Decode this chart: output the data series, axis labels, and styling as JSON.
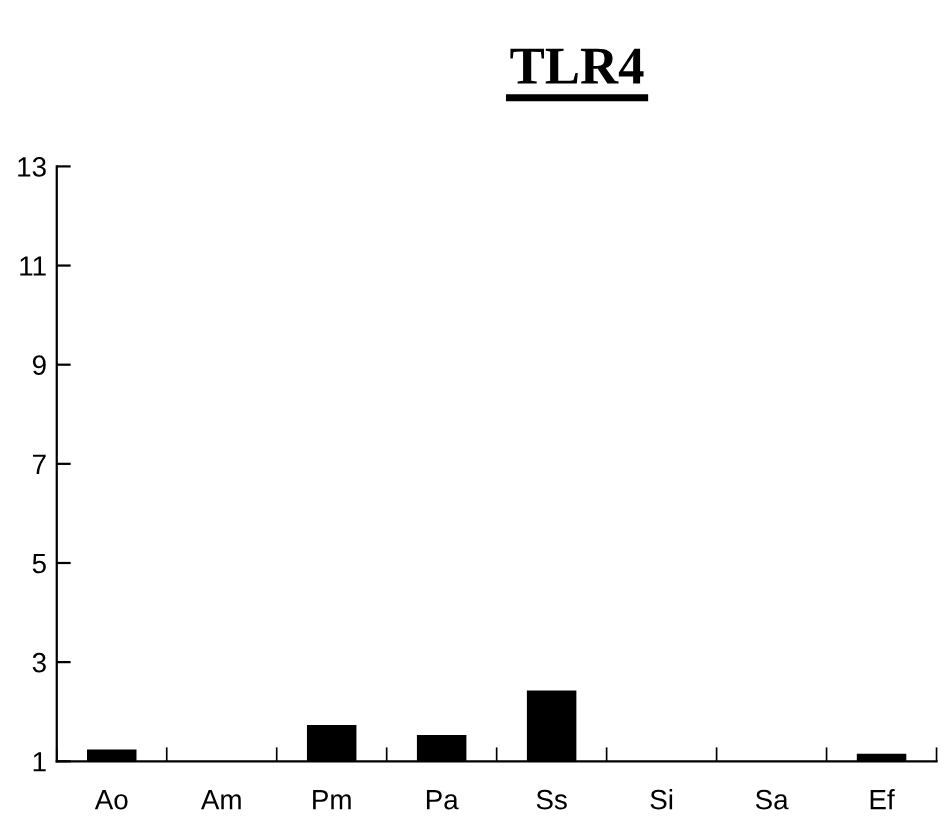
{
  "chart_data": {
    "type": "bar",
    "title": "TLR4",
    "categories": [
      "Ao",
      "Am",
      "Pm",
      "Pa",
      "Ss",
      "Si",
      "Sa",
      "Ef"
    ],
    "values": [
      1.24,
      1,
      1.73,
      1.53,
      2.43,
      1,
      1,
      1.15
    ],
    "color": "#000000",
    "ylim": [
      1,
      13
    ],
    "yticks": [
      1,
      3,
      5,
      7,
      9,
      11,
      13
    ],
    "grid": false
  }
}
